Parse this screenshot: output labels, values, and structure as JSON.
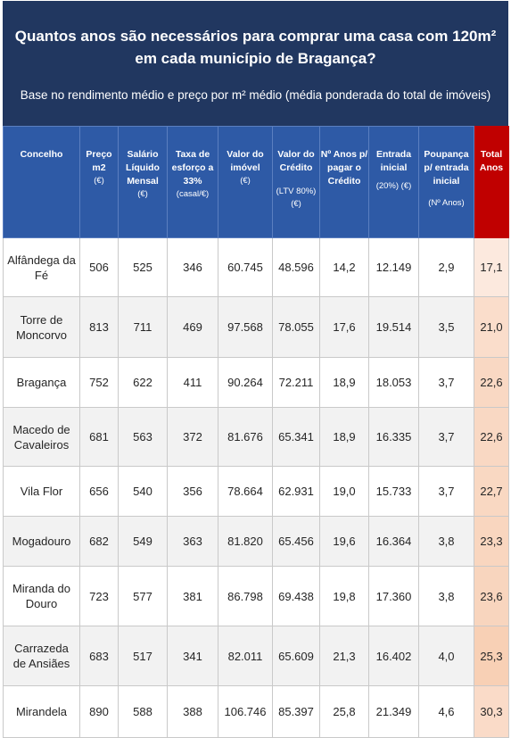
{
  "header": {
    "title": "Quantos anos são necessários para comprar uma casa com 120m² em cada município de Bragança?",
    "subtitle": "Base no rendimento médio e preço por m² médio (média ponderada do total de imóveis)"
  },
  "columns": {
    "c0": {
      "main": "Concelho",
      "sub": ""
    },
    "c1": {
      "main": "Preço m2",
      "sub": "(€)"
    },
    "c2": {
      "main": "Salário Líquido Mensal",
      "sub": "(€)"
    },
    "c3": {
      "main": "Taxa de esforço a 33%",
      "sub": "(casal/€)"
    },
    "c4": {
      "main": "Valor do imóvel",
      "sub": "(€)"
    },
    "c5": {
      "main": "Valor do Crédito",
      "sub": "(LTV 80%) (€)"
    },
    "c6": {
      "main": "Nº Anos p/ pagar o Crédito",
      "sub": ""
    },
    "c7": {
      "main": "Entrada inicial",
      "sub": "(20%) (€)"
    },
    "c8": {
      "main": "Poupança p/ entrada inicial",
      "sub": "(Nº Anos)"
    },
    "c9": {
      "main": "Total Anos",
      "sub": ""
    }
  },
  "colors": {
    "banner": "#213760",
    "header": "#2e5aa6",
    "total_header": "#c00000",
    "total_light": "#fce9de",
    "total_dark": "#f6c7a7"
  },
  "chart_data": {
    "type": "table",
    "title": "Quantos anos são necessários para comprar uma casa com 120m² em cada município de Bragança?",
    "rows": [
      {
        "concelho": "Alfândega da Fé",
        "preco_m2": "506",
        "salario": "525",
        "taxa": "346",
        "valor_imovel": "60.745",
        "valor_credito": "48.596",
        "anos_credito": "14,2",
        "entrada": "12.149",
        "poupanca": "2,9",
        "total": "17,1",
        "total_value": 17.1
      },
      {
        "concelho": "Torre de Moncorvo",
        "preco_m2": "813",
        "salario": "711",
        "taxa": "469",
        "valor_imovel": "97.568",
        "valor_credito": "78.055",
        "anos_credito": "17,6",
        "entrada": "19.514",
        "poupanca": "3,5",
        "total": "21,0",
        "total_value": 21.0
      },
      {
        "concelho": "Bragança",
        "preco_m2": "752",
        "salario": "622",
        "taxa": "411",
        "valor_imovel": "90.264",
        "valor_credito": "72.211",
        "anos_credito": "18,9",
        "entrada": "18.053",
        "poupanca": "3,7",
        "total": "22,6",
        "total_value": 22.6
      },
      {
        "concelho": "Macedo de Cavaleiros",
        "preco_m2": "681",
        "salario": "563",
        "taxa": "372",
        "valor_imovel": "81.676",
        "valor_credito": "65.341",
        "anos_credito": "18,9",
        "entrada": "16.335",
        "poupanca": "3,7",
        "total": "22,6",
        "total_value": 22.6
      },
      {
        "concelho": "Vila Flor",
        "preco_m2": "656",
        "salario": "540",
        "taxa": "356",
        "valor_imovel": "78.664",
        "valor_credito": "62.931",
        "anos_credito": "19,0",
        "entrada": "15.733",
        "poupanca": "3,7",
        "total": "22,7",
        "total_value": 22.7
      },
      {
        "concelho": "Mogadouro",
        "preco_m2": "682",
        "salario": "549",
        "taxa": "363",
        "valor_imovel": "81.820",
        "valor_credito": "65.456",
        "anos_credito": "19,6",
        "entrada": "16.364",
        "poupanca": "3,8",
        "total": "23,3",
        "total_value": 23.3
      },
      {
        "concelho": "Miranda do Douro",
        "preco_m2": "723",
        "salario": "577",
        "taxa": "381",
        "valor_imovel": "86.798",
        "valor_credito": "69.438",
        "anos_credito": "19,8",
        "entrada": "17.360",
        "poupanca": "3,8",
        "total": "23,6",
        "total_value": 23.6
      },
      {
        "concelho": "Carrazeda de Ansiães",
        "preco_m2": "683",
        "salario": "517",
        "taxa": "341",
        "valor_imovel": "82.011",
        "valor_credito": "65.609",
        "anos_credito": "21,3",
        "entrada": "16.402",
        "poupanca": "4,0",
        "total": "25,3",
        "total_value": 25.3
      },
      {
        "concelho": "Mirandela",
        "preco_m2": "890",
        "salario": "588",
        "taxa": "388",
        "valor_imovel": "106.746",
        "valor_credito": "85.397",
        "anos_credito": "25,8",
        "entrada": "21.349",
        "poupanca": "4,6",
        "total": "30,3",
        "total_value": 30.3
      }
    ]
  }
}
